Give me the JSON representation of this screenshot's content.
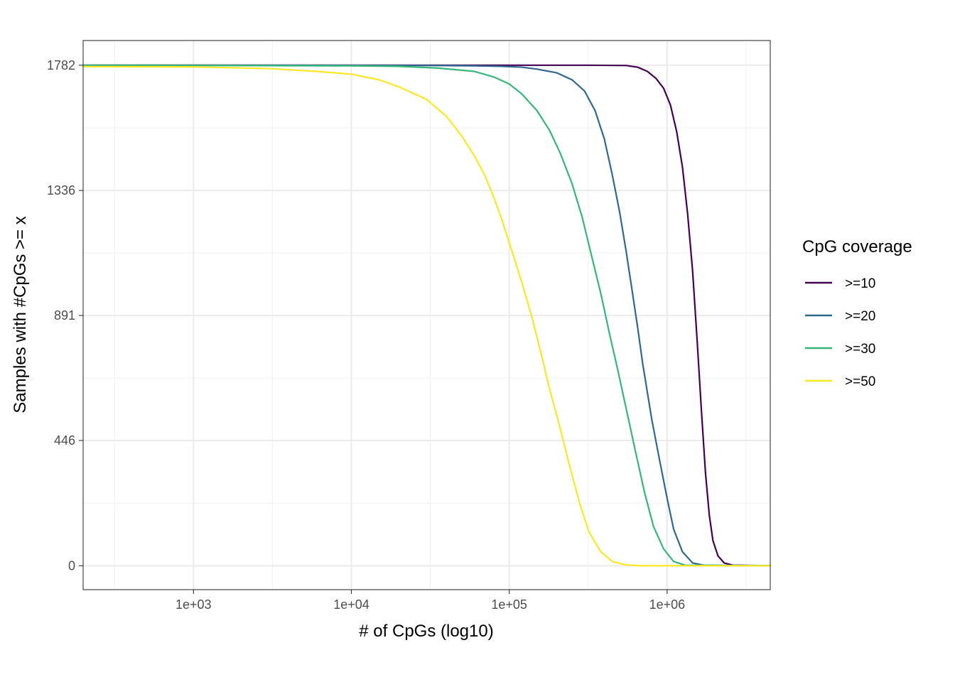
{
  "chart_data": {
    "type": "line",
    "title": "",
    "xlabel": "# of CpGs (log10)",
    "ylabel": "Samples with #CpGs >= x",
    "x_scale": "log10",
    "xlim": [
      200,
      4500000
    ],
    "ylim": [
      -85,
      1870
    ],
    "x_ticks": [
      1000,
      10000,
      100000,
      1000000
    ],
    "x_tick_labels": [
      "1e+03",
      "1e+04",
      "1e+05",
      "1e+06"
    ],
    "y_ticks": [
      0,
      446,
      891,
      1336,
      1782
    ],
    "y_tick_labels": [
      "0",
      "446",
      "891",
      "1336",
      "1782"
    ],
    "grid": true,
    "legend": {
      "title": "CpG coverage",
      "position": "right"
    },
    "series": [
      {
        "name": ">=10",
        "color": "#440154",
        "points": [
          [
            200,
            1782
          ],
          [
            300000,
            1782
          ],
          [
            550000,
            1781
          ],
          [
            650000,
            1775
          ],
          [
            750000,
            1760
          ],
          [
            850000,
            1735
          ],
          [
            950000,
            1700
          ],
          [
            1050000,
            1640
          ],
          [
            1150000,
            1545
          ],
          [
            1250000,
            1420
          ],
          [
            1350000,
            1250
          ],
          [
            1450000,
            1050
          ],
          [
            1550000,
            800
          ],
          [
            1650000,
            550
          ],
          [
            1750000,
            330
          ],
          [
            1850000,
            180
          ],
          [
            1950000,
            90
          ],
          [
            2100000,
            35
          ],
          [
            2300000,
            10
          ],
          [
            2600000,
            2
          ],
          [
            4500000,
            0
          ]
        ]
      },
      {
        "name": ">=20",
        "color": "#31688e",
        "points": [
          [
            200,
            1782
          ],
          [
            30000,
            1781
          ],
          [
            60000,
            1780
          ],
          [
            90000,
            1778
          ],
          [
            120000,
            1775
          ],
          [
            150000,
            1768
          ],
          [
            200000,
            1755
          ],
          [
            250000,
            1730
          ],
          [
            300000,
            1690
          ],
          [
            350000,
            1620
          ],
          [
            400000,
            1520
          ],
          [
            450000,
            1390
          ],
          [
            500000,
            1260
          ],
          [
            550000,
            1120
          ],
          [
            600000,
            980
          ],
          [
            650000,
            850
          ],
          [
            700000,
            720
          ],
          [
            800000,
            520
          ],
          [
            900000,
            370
          ],
          [
            1000000,
            240
          ],
          [
            1100000,
            130
          ],
          [
            1250000,
            50
          ],
          [
            1450000,
            10
          ],
          [
            1700000,
            2
          ],
          [
            4500000,
            0
          ]
        ]
      },
      {
        "name": ">=30",
        "color": "#35b779",
        "points": [
          [
            200,
            1782
          ],
          [
            10000,
            1780
          ],
          [
            20000,
            1778
          ],
          [
            35000,
            1772
          ],
          [
            60000,
            1760
          ],
          [
            80000,
            1740
          ],
          [
            100000,
            1715
          ],
          [
            120000,
            1680
          ],
          [
            150000,
            1620
          ],
          [
            180000,
            1550
          ],
          [
            210000,
            1470
          ],
          [
            250000,
            1360
          ],
          [
            290000,
            1240
          ],
          [
            330000,
            1110
          ],
          [
            380000,
            970
          ],
          [
            430000,
            830
          ],
          [
            490000,
            690
          ],
          [
            560000,
            540
          ],
          [
            640000,
            390
          ],
          [
            720000,
            260
          ],
          [
            820000,
            140
          ],
          [
            950000,
            60
          ],
          [
            1100000,
            15
          ],
          [
            1300000,
            2
          ],
          [
            4500000,
            0
          ]
        ]
      },
      {
        "name": ">=50",
        "color": "#fde725",
        "points": [
          [
            200,
            1777
          ],
          [
            1000,
            1776
          ],
          [
            3000,
            1770
          ],
          [
            6000,
            1760
          ],
          [
            10000,
            1750
          ],
          [
            15000,
            1730
          ],
          [
            20000,
            1705
          ],
          [
            30000,
            1660
          ],
          [
            40000,
            1600
          ],
          [
            50000,
            1530
          ],
          [
            60000,
            1460
          ],
          [
            70000,
            1390
          ],
          [
            80000,
            1310
          ],
          [
            90000,
            1230
          ],
          [
            100000,
            1150
          ],
          [
            120000,
            1010
          ],
          [
            140000,
            880
          ],
          [
            160000,
            750
          ],
          [
            180000,
            630
          ],
          [
            210000,
            490
          ],
          [
            240000,
            360
          ],
          [
            280000,
            220
          ],
          [
            320000,
            120
          ],
          [
            380000,
            50
          ],
          [
            450000,
            15
          ],
          [
            550000,
            3
          ],
          [
            700000,
            0
          ],
          [
            4500000,
            0
          ]
        ]
      }
    ]
  }
}
